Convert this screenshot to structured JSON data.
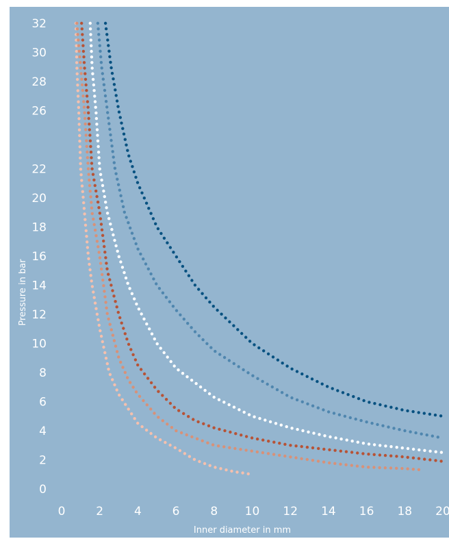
{
  "colors": {
    "background": "#94b5cf",
    "tick_text": "#ffffff",
    "axis_label_text": "#ffffff",
    "series": [
      "#f5c0ad",
      "#d89178",
      "#b75336",
      "#ffffff",
      "#4f86ae",
      "#075180"
    ]
  },
  "chart_data": {
    "type": "scatter",
    "title": "",
    "xlabel": "Inner diameter in mm",
    "ylabel": "Pressure in bar",
    "xlim": [
      0,
      20
    ],
    "ylim": [
      0,
      32
    ],
    "grid": false,
    "legend": "none",
    "x_ticks": [
      "0",
      "2",
      "4",
      "6",
      "8",
      "10",
      "12",
      "14",
      "16",
      "18",
      "20"
    ],
    "y_ticks": [
      "0",
      "2",
      "4",
      "6",
      "8",
      "10",
      "12",
      "14",
      "16",
      "18",
      "20",
      "22",
      "26",
      "28",
      "30",
      "32"
    ],
    "series": [
      {
        "points": [
          [
            0.75,
            32.0
          ],
          [
            0.8,
            29.0
          ],
          [
            0.9,
            26.0
          ],
          [
            1.0,
            22.0
          ],
          [
            1.2,
            19.0
          ],
          [
            1.4,
            16.0
          ],
          [
            1.6,
            14.0
          ],
          [
            2.0,
            11.0
          ],
          [
            2.5,
            8.0
          ],
          [
            3.0,
            6.5
          ],
          [
            4.0,
            4.5
          ],
          [
            5.0,
            3.5
          ],
          [
            6.0,
            2.8
          ],
          [
            7.0,
            2.0
          ],
          [
            8.0,
            1.5
          ],
          [
            9.0,
            1.2
          ],
          [
            10.0,
            1.0
          ]
        ]
      },
      {
        "points": [
          [
            0.8,
            32.0
          ],
          [
            1.0,
            29.0
          ],
          [
            1.2,
            26.0
          ],
          [
            1.4,
            22.0
          ],
          [
            1.6,
            19.0
          ],
          [
            2.0,
            16.0
          ],
          [
            2.4,
            12.0
          ],
          [
            3.0,
            9.0
          ],
          [
            3.5,
            7.5
          ],
          [
            4.0,
            6.5
          ],
          [
            5.0,
            5.0
          ],
          [
            6.0,
            4.0
          ],
          [
            8.0,
            3.0
          ],
          [
            10.0,
            2.6
          ],
          [
            12.0,
            2.2
          ],
          [
            14.0,
            1.8
          ],
          [
            16.0,
            1.5
          ],
          [
            18.0,
            1.4
          ],
          [
            19.0,
            1.3
          ]
        ]
      },
      {
        "points": [
          [
            1.05,
            32.0
          ],
          [
            1.2,
            29.0
          ],
          [
            1.4,
            26.0
          ],
          [
            1.6,
            22.0
          ],
          [
            2.0,
            19.0
          ],
          [
            2.4,
            15.0
          ],
          [
            3.0,
            12.0
          ],
          [
            3.5,
            10.0
          ],
          [
            4.0,
            8.5
          ],
          [
            5.0,
            6.8
          ],
          [
            6.0,
            5.5
          ],
          [
            7.0,
            4.7
          ],
          [
            8.0,
            4.2
          ],
          [
            10.0,
            3.5
          ],
          [
            12.0,
            3.0
          ],
          [
            14.0,
            2.7
          ],
          [
            16.0,
            2.4
          ],
          [
            18.0,
            2.2
          ],
          [
            20.0,
            1.9
          ]
        ]
      },
      {
        "points": [
          [
            1.5,
            32.0
          ],
          [
            1.6,
            29.0
          ],
          [
            1.8,
            26.0
          ],
          [
            2.0,
            22.0
          ],
          [
            2.4,
            19.0
          ],
          [
            3.0,
            16.0
          ],
          [
            3.5,
            14.0
          ],
          [
            4.0,
            12.5
          ],
          [
            5.0,
            10.0
          ],
          [
            6.0,
            8.3
          ],
          [
            8.0,
            6.3
          ],
          [
            10.0,
            5.0
          ],
          [
            12.0,
            4.2
          ],
          [
            14.0,
            3.6
          ],
          [
            16.0,
            3.1
          ],
          [
            18.0,
            2.8
          ],
          [
            20.0,
            2.5
          ]
        ]
      },
      {
        "points": [
          [
            1.9,
            32.0
          ],
          [
            2.1,
            29.0
          ],
          [
            2.4,
            26.0
          ],
          [
            2.8,
            22.0
          ],
          [
            3.3,
            19.0
          ],
          [
            4.0,
            16.5
          ],
          [
            5.0,
            14.0
          ],
          [
            6.0,
            12.3
          ],
          [
            7.0,
            10.8
          ],
          [
            8.0,
            9.5
          ],
          [
            10.0,
            7.8
          ],
          [
            12.0,
            6.3
          ],
          [
            14.0,
            5.3
          ],
          [
            16.0,
            4.6
          ],
          [
            18.0,
            4.0
          ],
          [
            20.0,
            3.5
          ]
        ]
      },
      {
        "points": [
          [
            2.3,
            32.0
          ],
          [
            2.6,
            29.0
          ],
          [
            3.0,
            26.0
          ],
          [
            3.5,
            23.0
          ],
          [
            4.0,
            21.0
          ],
          [
            5.0,
            18.0
          ],
          [
            6.0,
            16.0
          ],
          [
            7.0,
            14.0
          ],
          [
            8.0,
            12.5
          ],
          [
            10.0,
            10.0
          ],
          [
            12.0,
            8.3
          ],
          [
            14.0,
            7.0
          ],
          [
            16.0,
            6.0
          ],
          [
            18.0,
            5.4
          ],
          [
            20.0,
            5.0
          ]
        ]
      }
    ]
  }
}
